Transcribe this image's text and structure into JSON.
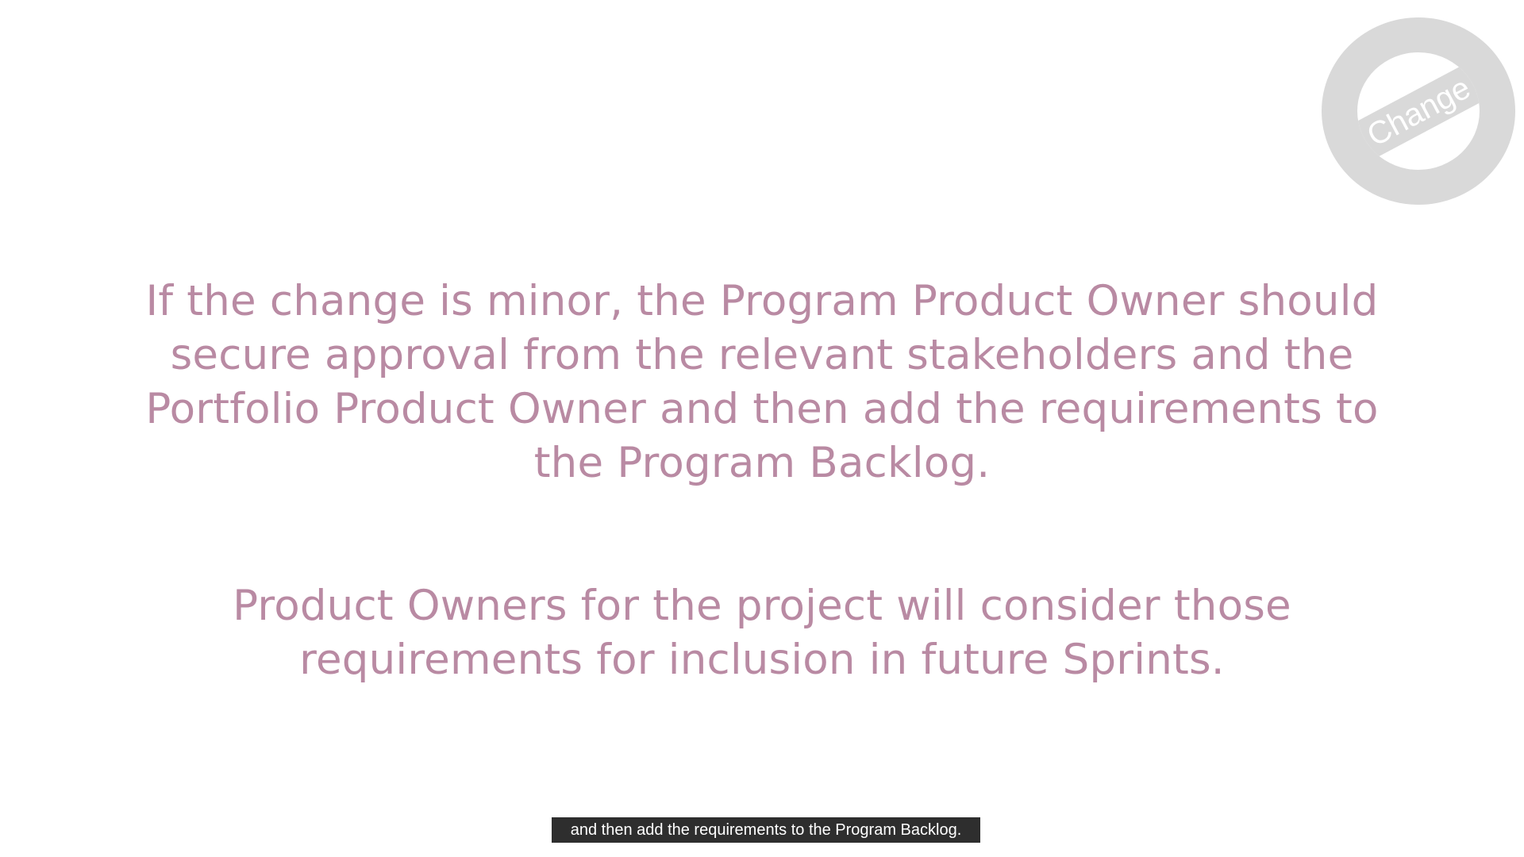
{
  "badge": {
    "label": "Change",
    "ring_color": "#d9d9d9",
    "text_color": "#ffffff"
  },
  "content": {
    "paragraph_1": [
      "If the change is minor, the Program Product Owner should",
      "secure approval from the relevant stakeholders and the",
      "Portfolio Product Owner and then add the requirements to",
      "the Program Backlog."
    ],
    "paragraph_2": [
      "Product Owners for the project will consider those",
      "requirements for inclusion in future Sprints."
    ],
    "text_color": "#b98aa3"
  },
  "caption": {
    "text": "and then add the requirements to the Program Backlog."
  }
}
